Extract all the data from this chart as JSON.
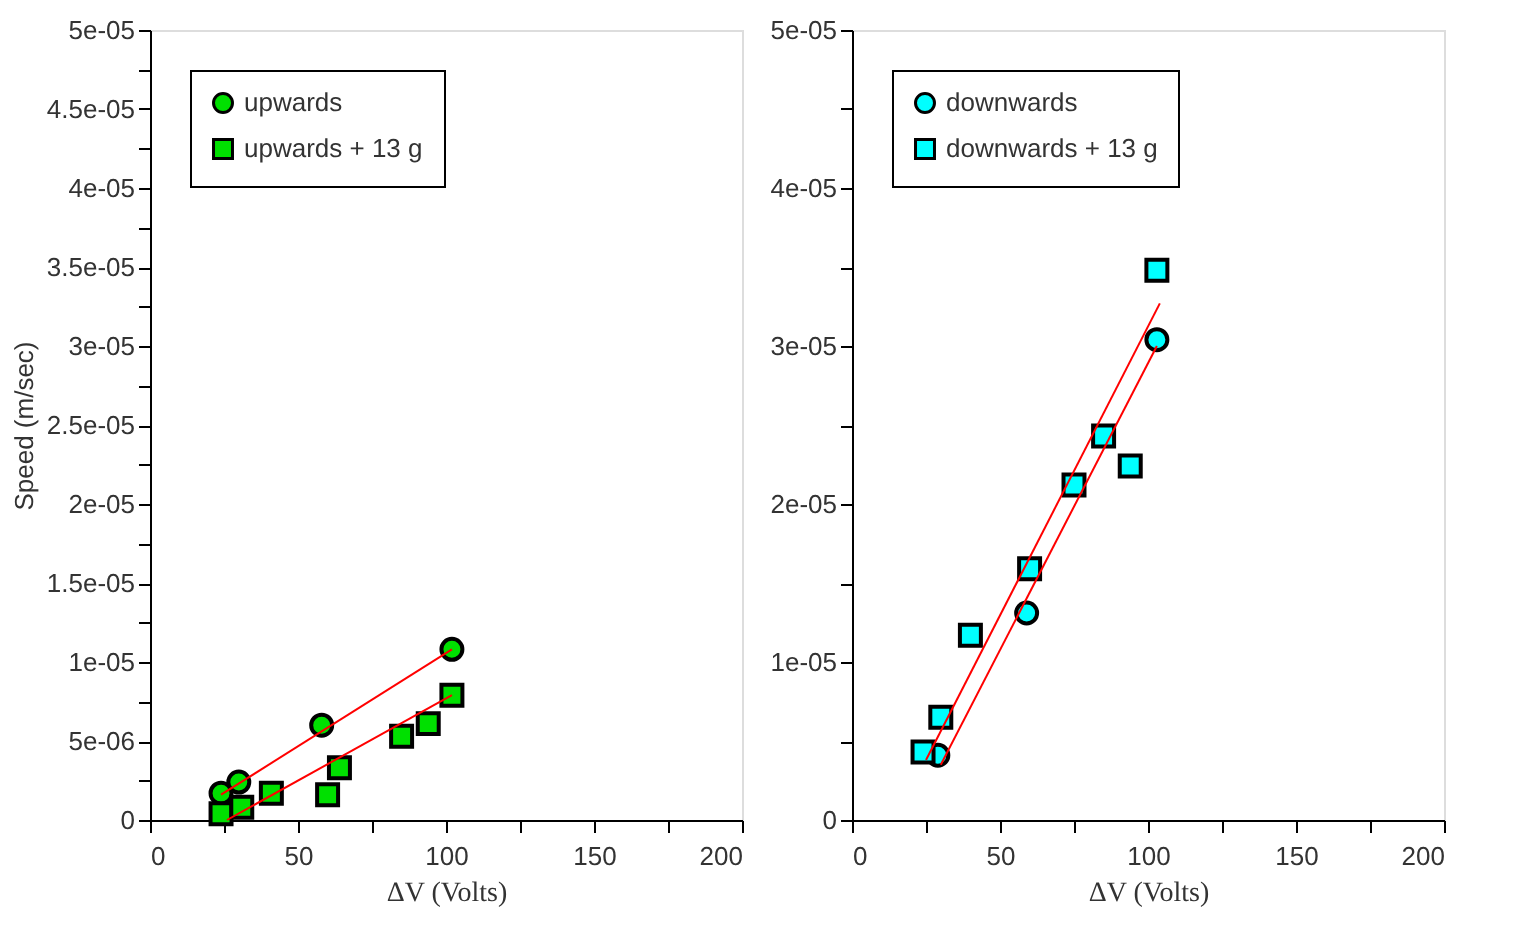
{
  "chart_data": [
    {
      "type": "scatter",
      "xlabel": "ΔV (Volts)",
      "ylabel": "Speed (m/sec)",
      "legend": "top left",
      "grid": false,
      "xlim": [
        0,
        200
      ],
      "ylim": [
        0,
        5e-05
      ],
      "xticks": [
        0,
        {
          "value": 25,
          "label": null
        },
        50,
        {
          "value": 75,
          "label": null
        },
        100,
        {
          "value": 125,
          "label": null
        },
        150,
        {
          "value": 175,
          "label": null
        },
        200
      ],
      "yticks": [
        0,
        {
          "value": 2.5e-06,
          "label": null
        },
        {
          "value": 5e-06,
          "label": "5e-06"
        },
        {
          "value": 7.5e-06,
          "label": null
        },
        {
          "value": 1e-05,
          "label": "1e-05"
        },
        {
          "value": 1.25e-05,
          "label": null
        },
        {
          "value": 1.5e-05,
          "label": "1.5e-05"
        },
        {
          "value": 1.75e-05,
          "label": null
        },
        {
          "value": 2e-05,
          "label": "2e-05"
        },
        {
          "value": 2.25e-05,
          "label": null
        },
        {
          "value": 2.5e-05,
          "label": "2.5e-05"
        },
        {
          "value": 2.75e-05,
          "label": null
        },
        {
          "value": 3e-05,
          "label": "3e-05"
        },
        {
          "value": 3.25e-05,
          "label": null
        },
        {
          "value": 3.5e-05,
          "label": "3.5e-05"
        },
        {
          "value": 3.75e-05,
          "label": null
        },
        {
          "value": 4e-05,
          "label": "4e-05"
        },
        {
          "value": 4.25e-05,
          "label": null
        },
        {
          "value": 4.5e-05,
          "label": "4.5e-05"
        },
        {
          "value": 4.75e-05,
          "label": null
        },
        {
          "value": 5e-05,
          "label": "5e-05"
        }
      ],
      "series": [
        {
          "name": "upwards",
          "color": "#00e000",
          "marker": "circle",
          "x": [
            24,
            30,
            58,
            102
          ],
          "values": [
            1.7e-06,
            2.4e-06,
            6e-06,
            1.08e-05
          ]
        },
        {
          "name": "upwards + 13 g",
          "color": "#00e000",
          "marker": "square",
          "x": [
            24,
            31,
            41,
            60,
            64,
            85,
            94,
            102
          ],
          "values": [
            4e-07,
            8e-07,
            1.7e-06,
            1.6e-06,
            3.3e-06,
            5.3e-06,
            6.1e-06,
            7.9e-06
          ]
        },
        {
          "type": "line",
          "color": "#ff0000",
          "marker": "none",
          "x": [
            24,
            102
          ],
          "values": [
            1.6e-06,
            1.08e-05
          ]
        },
        {
          "type": "line",
          "color": "#ff0000",
          "marker": "none",
          "x": [
            26,
            102
          ],
          "values": [
            0,
            7.9e-06
          ]
        }
      ]
    },
    {
      "type": "scatter",
      "xlabel": "ΔV (Volts)",
      "legend": "top left",
      "grid": false,
      "xlim": [
        0,
        200
      ],
      "ylim": [
        0,
        5e-05
      ],
      "xticks": [
        0,
        {
          "value": 25,
          "label": null
        },
        50,
        {
          "value": 75,
          "label": null
        },
        100,
        {
          "value": 125,
          "label": null
        },
        150,
        {
          "value": 175,
          "label": null
        },
        200
      ],
      "yticks": [
        0,
        {
          "value": 5e-06,
          "label": null
        },
        {
          "value": 1e-05,
          "label": "1e-05"
        },
        {
          "value": 1.5e-05,
          "label": null
        },
        {
          "value": 2e-05,
          "label": "2e-05"
        },
        {
          "value": 2.5e-05,
          "label": null
        },
        {
          "value": 3e-05,
          "label": "3e-05"
        },
        {
          "value": 3.5e-05,
          "label": null
        },
        {
          "value": 4e-05,
          "label": "4e-05"
        },
        {
          "value": 4.5e-05,
          "label": null
        },
        {
          "value": 5e-05,
          "label": "5e-05"
        }
      ],
      "series": [
        {
          "name": "downwards",
          "color": "#00ffff",
          "marker": "circle",
          "x": [
            29,
            59,
            103
          ],
          "values": [
            4.1e-06,
            1.31e-05,
            3.04e-05
          ]
        },
        {
          "name": "downwards + 13 g",
          "color": "#00ffff",
          "marker": "square",
          "x": [
            24,
            30,
            40,
            60,
            75,
            85,
            94,
            103
          ],
          "values": [
            4.3e-06,
            6.5e-06,
            1.17e-05,
            1.59e-05,
            2.12e-05,
            2.43e-05,
            2.24e-05,
            3.48e-05
          ]
        },
        {
          "type": "line",
          "color": "#ff0000",
          "marker": "none",
          "x": [
            30,
            103
          ],
          "values": [
            3.5e-06,
            3e-05
          ]
        },
        {
          "type": "line",
          "color": "#ff0000",
          "marker": "none",
          "x": [
            25,
            104
          ],
          "values": [
            3.8e-06,
            3.27e-05
          ]
        }
      ]
    }
  ]
}
